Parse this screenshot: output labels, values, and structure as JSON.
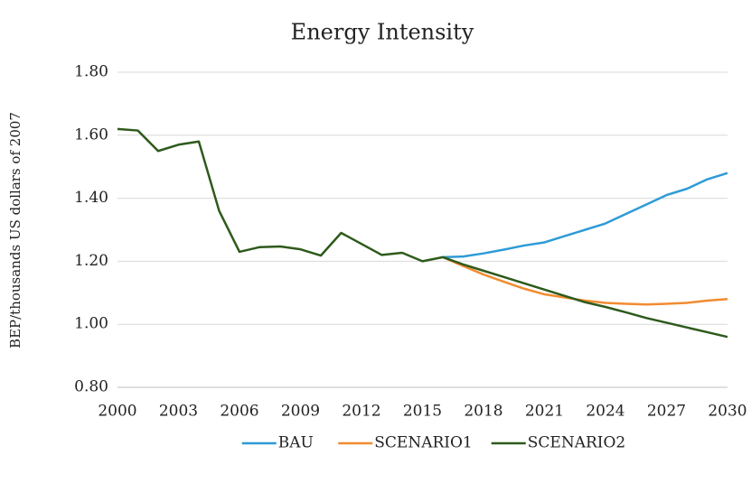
{
  "chart_data": {
    "type": "line",
    "title": "Energy Intensity",
    "y_label": "BEP/thousands US dollars of 2007",
    "x": [
      2000,
      2001,
      2002,
      2003,
      2004,
      2005,
      2006,
      2007,
      2008,
      2009,
      2010,
      2011,
      2012,
      2013,
      2014,
      2015,
      2016,
      2017,
      2018,
      2019,
      2020,
      2021,
      2022,
      2023,
      2024,
      2025,
      2026,
      2027,
      2028,
      2029,
      2030
    ],
    "series": [
      {
        "name": "BAU",
        "color": "#2e9bd6",
        "values": [
          null,
          null,
          null,
          null,
          null,
          null,
          null,
          null,
          null,
          null,
          null,
          null,
          null,
          null,
          null,
          null,
          1.213,
          1.215,
          1.225,
          1.237,
          1.25,
          1.26,
          1.28,
          1.3,
          1.32,
          1.35,
          1.38,
          1.41,
          1.43,
          1.46,
          1.48
        ]
      },
      {
        "name": "SCENARIO1",
        "color": "#f28b30",
        "values": [
          null,
          null,
          null,
          null,
          null,
          null,
          null,
          null,
          null,
          null,
          null,
          null,
          null,
          null,
          null,
          null,
          1.213,
          1.185,
          1.158,
          1.135,
          1.113,
          1.095,
          1.085,
          1.075,
          1.068,
          1.065,
          1.063,
          1.065,
          1.068,
          1.075,
          1.08
        ]
      },
      {
        "name": "SCENARIO2",
        "color": "#2e5a1c",
        "values": [
          1.62,
          1.615,
          1.55,
          1.57,
          1.58,
          1.36,
          1.23,
          1.245,
          1.247,
          1.238,
          1.218,
          1.29,
          1.255,
          1.22,
          1.227,
          1.2,
          1.213,
          1.19,
          1.17,
          1.15,
          1.13,
          1.11,
          1.09,
          1.07,
          1.055,
          1.038,
          1.02,
          1.005,
          0.99,
          0.975,
          0.96
        ]
      }
    ],
    "xlim": [
      2000,
      2030
    ],
    "xticks": [
      2000,
      2003,
      2006,
      2009,
      2012,
      2015,
      2018,
      2021,
      2024,
      2027,
      2030
    ],
    "ylim": [
      0.8,
      1.8
    ],
    "yticks": [
      {
        "value": 0.8,
        "label": "0.80"
      },
      {
        "value": 1.0,
        "label": "1.00"
      },
      {
        "value": 1.2,
        "label": "1.20"
      },
      {
        "value": 1.4,
        "label": "1.40"
      },
      {
        "value": 1.6,
        "label": "1.60"
      },
      {
        "value": 1.8,
        "label": "1.80"
      }
    ],
    "grid": true,
    "legend": "bottom"
  }
}
